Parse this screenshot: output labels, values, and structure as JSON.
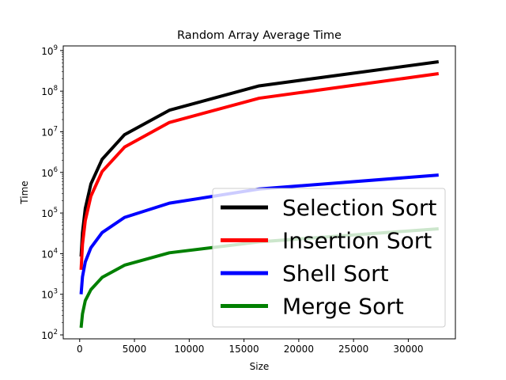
{
  "chart_data": {
    "type": "line",
    "title": "Random Array Average Time",
    "xlabel": "Size",
    "ylabel": "Time",
    "yscale": "log",
    "xlim": [
      -1500,
      34300
    ],
    "ylim": [
      80,
      1300000000
    ],
    "xticks": [
      0,
      5000,
      10000,
      15000,
      20000,
      25000,
      30000
    ],
    "xtick_labels": [
      "0",
      "5000",
      "10000",
      "15000",
      "20000",
      "25000",
      "30000"
    ],
    "yticks": [
      100,
      1000,
      10000,
      100000,
      1000000,
      10000000,
      100000000,
      1000000000
    ],
    "ytick_exponents": [
      "2",
      "3",
      "4",
      "5",
      "6",
      "7",
      "8",
      "9"
    ],
    "grid": false,
    "legend_position": "lower-right",
    "x": [
      128,
      256,
      512,
      1024,
      2048,
      4096,
      8192,
      16384,
      32768
    ],
    "series": [
      {
        "name": "Selection Sort",
        "color": "#000000",
        "values": [
          8500,
          33000,
          130000,
          520000,
          2100000,
          8500000,
          34000000,
          135000000,
          530000000
        ]
      },
      {
        "name": "Insertion Sort",
        "color": "#ff0000",
        "values": [
          4000,
          17000,
          65000,
          260000,
          1050000,
          4200000,
          17000000,
          67000000,
          270000000
        ]
      },
      {
        "name": "Shell Sort",
        "color": "#0000ff",
        "values": [
          1000,
          2700,
          6300,
          14000,
          33000,
          78000,
          175000,
          390000,
          860000
        ]
      },
      {
        "name": "Merge Sort",
        "color": "#008000",
        "values": [
          150,
          330,
          700,
          1300,
          2600,
          5200,
          10500,
          19500,
          41000
        ]
      }
    ]
  }
}
